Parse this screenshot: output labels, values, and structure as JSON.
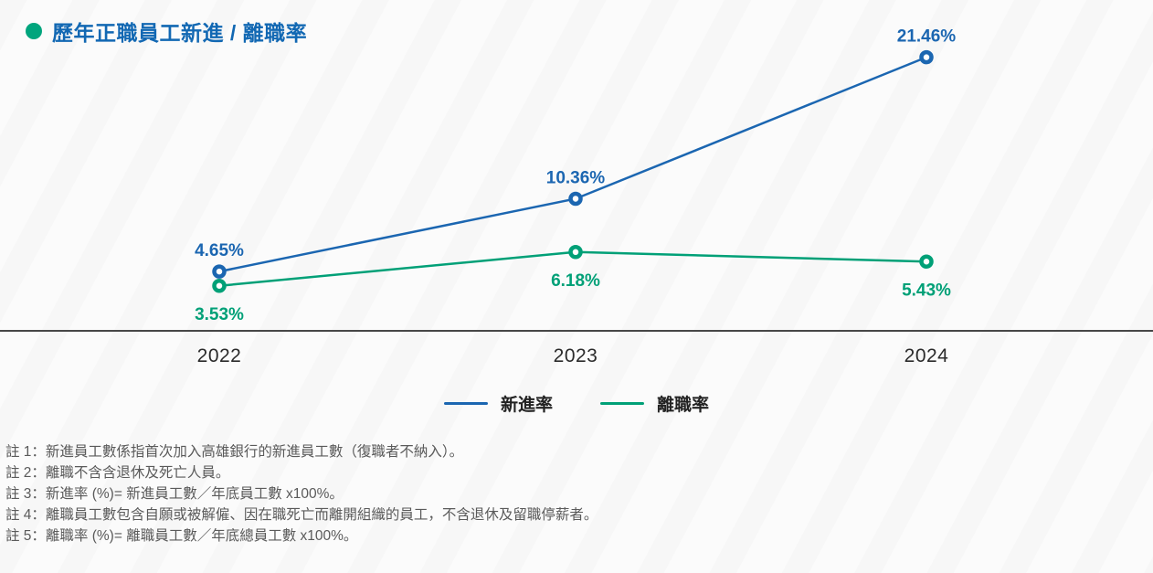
{
  "title": {
    "text": "歷年正職員工新進 / 離職率",
    "bullet_color": "#00a57d",
    "text_color": "#1268b3"
  },
  "chart_data": {
    "type": "line",
    "categories": [
      "2022",
      "2023",
      "2024"
    ],
    "series": [
      {
        "name": "新進率",
        "color": "#1b66b1",
        "values": [
          4.65,
          10.36,
          21.46
        ],
        "labels": [
          "4.65%",
          "10.36%",
          "21.46%"
        ],
        "label_position": "above"
      },
      {
        "name": "離職率",
        "color": "#00a077",
        "values": [
          3.53,
          6.18,
          5.43
        ],
        "labels": [
          "3.53%",
          "6.18%",
          "5.43%"
        ],
        "label_position": "below"
      }
    ],
    "title": "歷年正職員工新進 / 離職率",
    "xlabel": "",
    "ylabel": "",
    "ylim": [
      0,
      25
    ],
    "grid": false,
    "legend_position": "bottom",
    "marker": "open-circle"
  },
  "legend": {
    "items": [
      {
        "label": "新進率",
        "color": "#1b66b1"
      },
      {
        "label": "離職率",
        "color": "#00a077"
      }
    ]
  },
  "notes": [
    "註 1：新進員工數係指首次加入高雄銀行的新進員工數（復職者不納入）。",
    "註 2：離職不含含退休及死亡人員。",
    "註 3：新進率 (%)= 新進員工數／年底員工數 x100%。",
    "註 4：離職員工數包含自願或被解僱、因在職死亡而離開組織的員工，不含退休及留職停薪者。",
    "註 5：離職率 (%)= 離職員工數／年底總員工數 x100%。"
  ],
  "axis": {
    "line_color": "#474747"
  }
}
